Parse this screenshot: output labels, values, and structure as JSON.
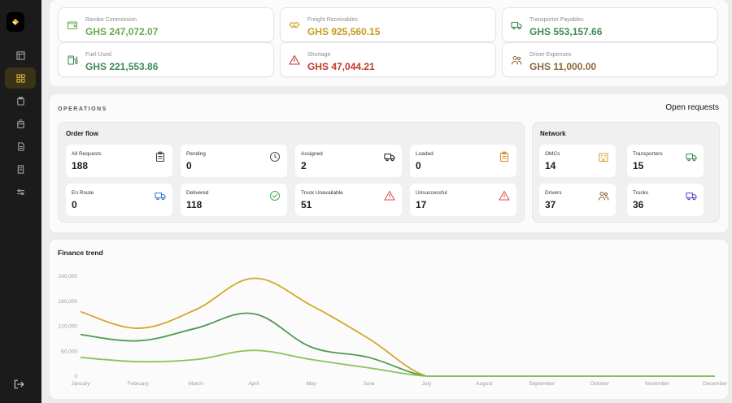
{
  "kpis": [
    {
      "label": "Rambo Commission",
      "value": "GHS 247,072.07",
      "color": "#6aa84f",
      "icon": "wallet-icon"
    },
    {
      "label": "Freight Receivables",
      "value": "GHS 925,560.15",
      "color": "#c99a1a",
      "icon": "handshake-icon"
    },
    {
      "label": "Transporter Payables",
      "value": "GHS 553,157.66",
      "color": "#3f8a55",
      "icon": "truck-icon"
    },
    {
      "label": "Fuel Used",
      "value": "GHS 221,553.86",
      "color": "#3f8a55",
      "icon": "fuel-pump-icon"
    },
    {
      "label": "Shortage",
      "value": "GHS 47,044.21",
      "color": "#c0392b",
      "icon": "warning-icon"
    },
    {
      "label": "Driver Expenses",
      "value": "GHS 11,000.00",
      "color": "#8a6a3a",
      "icon": "users-icon"
    }
  ],
  "operations": {
    "section_label": "OPERATIONS",
    "open_requests_label": "Open requests",
    "order_flow": {
      "title": "Order flow",
      "cards": [
        {
          "label": "All Requests",
          "value": "188",
          "icon": "clipboard-icon"
        },
        {
          "label": "Pending",
          "value": "0",
          "icon": "clock-icon"
        },
        {
          "label": "Assigned",
          "value": "2",
          "icon": "truck-icon"
        },
        {
          "label": "Loaded",
          "value": "0",
          "icon": "clipboard-icon"
        },
        {
          "label": "En Route",
          "value": "0",
          "icon": "truck-icon"
        },
        {
          "label": "Delivered",
          "value": "118",
          "icon": "check-circle-icon"
        },
        {
          "label": "Truck Unavailable",
          "value": "51",
          "icon": "warning-icon"
        },
        {
          "label": "Unsuccessful",
          "value": "17",
          "icon": "warning-icon"
        }
      ]
    },
    "network": {
      "title": "Network",
      "cards": [
        {
          "label": "OMCs",
          "value": "14",
          "icon": "building-icon"
        },
        {
          "label": "Transporters",
          "value": "15",
          "icon": "truck-icon"
        },
        {
          "label": "Drivers",
          "value": "37",
          "icon": "users-icon"
        },
        {
          "label": "Trucks",
          "value": "36",
          "icon": "truck-icon"
        }
      ]
    }
  },
  "finance_trend": {
    "title": "Finance trend"
  },
  "chart_data": {
    "type": "line",
    "x": [
      "January",
      "February",
      "March",
      "April",
      "May",
      "June",
      "July",
      "August",
      "September",
      "October",
      "November",
      "December"
    ],
    "y_tick_labels": [
      "240,000",
      "180,000",
      "120,000",
      "60,000",
      "0"
    ],
    "ylim": [
      0,
      240000
    ],
    "grid": false,
    "series": [
      {
        "color": "#d4a62a",
        "values": [
          155000,
          115000,
          160000,
          235000,
          170000,
          90000,
          0,
          0,
          0,
          0,
          0,
          0
        ]
      },
      {
        "color": "#4f9a4f",
        "values": [
          100000,
          85000,
          115000,
          150000,
          70000,
          45000,
          0,
          0,
          0,
          0,
          0,
          0
        ]
      },
      {
        "color": "#8fc05a",
        "values": [
          45000,
          35000,
          40000,
          62000,
          40000,
          20000,
          0,
          0,
          0,
          0,
          0,
          0
        ]
      }
    ]
  }
}
